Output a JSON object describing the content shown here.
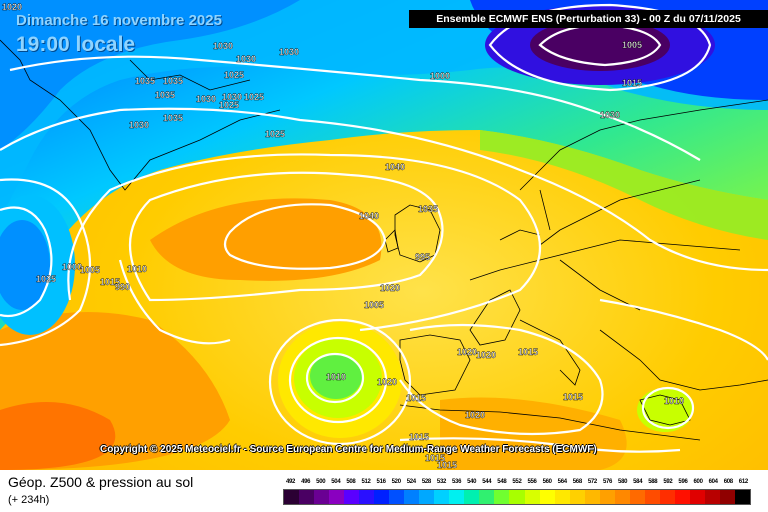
{
  "header": {
    "date_line": "Dimanche 16 novembre 2025",
    "time_line": "19:00 locale",
    "model_line": "Ensemble ECMWF ENS  (Perturbation 33)  - 00 Z du 07/11/2025"
  },
  "copyright": "Copyright © 2025 Meteociel.fr - Source European Centre for Medium-Range Weather Forecasts (ECMWF)",
  "footer": {
    "title": "Géop. Z500 & pression au sol",
    "subtitle": "(+ 234h)"
  },
  "legend": {
    "values": [
      "492",
      "496",
      "500",
      "504",
      "508",
      "512",
      "516",
      "520",
      "524",
      "528",
      "532",
      "536",
      "540",
      "544",
      "548",
      "552",
      "556",
      "560",
      "564",
      "568",
      "572",
      "576",
      "580",
      "584",
      "588",
      "592",
      "596",
      "600",
      "604",
      "608",
      "612"
    ],
    "colors": [
      "#2b0033",
      "#4a0063",
      "#6a0093",
      "#8a00c0",
      "#5a00ff",
      "#2a10ff",
      "#0020ff",
      "#0050ff",
      "#0080ff",
      "#00a8ff",
      "#00d0ff",
      "#00f0f0",
      "#00f0b0",
      "#30f070",
      "#70ff30",
      "#a8ff00",
      "#d8ff00",
      "#ffff00",
      "#ffe800",
      "#ffd000",
      "#ffb800",
      "#ffa000",
      "#ff8800",
      "#ff6a00",
      "#ff4c00",
      "#ff2e00",
      "#ff1000",
      "#e00000",
      "#b80000",
      "#900000",
      "#000000"
    ]
  },
  "pressure_labels": [
    "1020",
    "1030",
    "1030",
    "1030",
    "1035",
    "1035",
    "1035",
    "1025",
    "1030",
    "1030",
    "1025",
    "1035",
    "1030",
    "1025",
    "1025",
    "1000",
    "1005",
    "1015",
    "1030",
    "1040",
    "1040",
    "1035",
    "995",
    "1000",
    "1005",
    "1015",
    "1010",
    "990",
    "1025",
    "1020",
    "1005",
    "1010",
    "1020",
    "1020",
    "1020",
    "1015",
    "1015",
    "1015",
    "1020",
    "1015",
    "1015",
    "1015",
    "1010"
  ]
}
